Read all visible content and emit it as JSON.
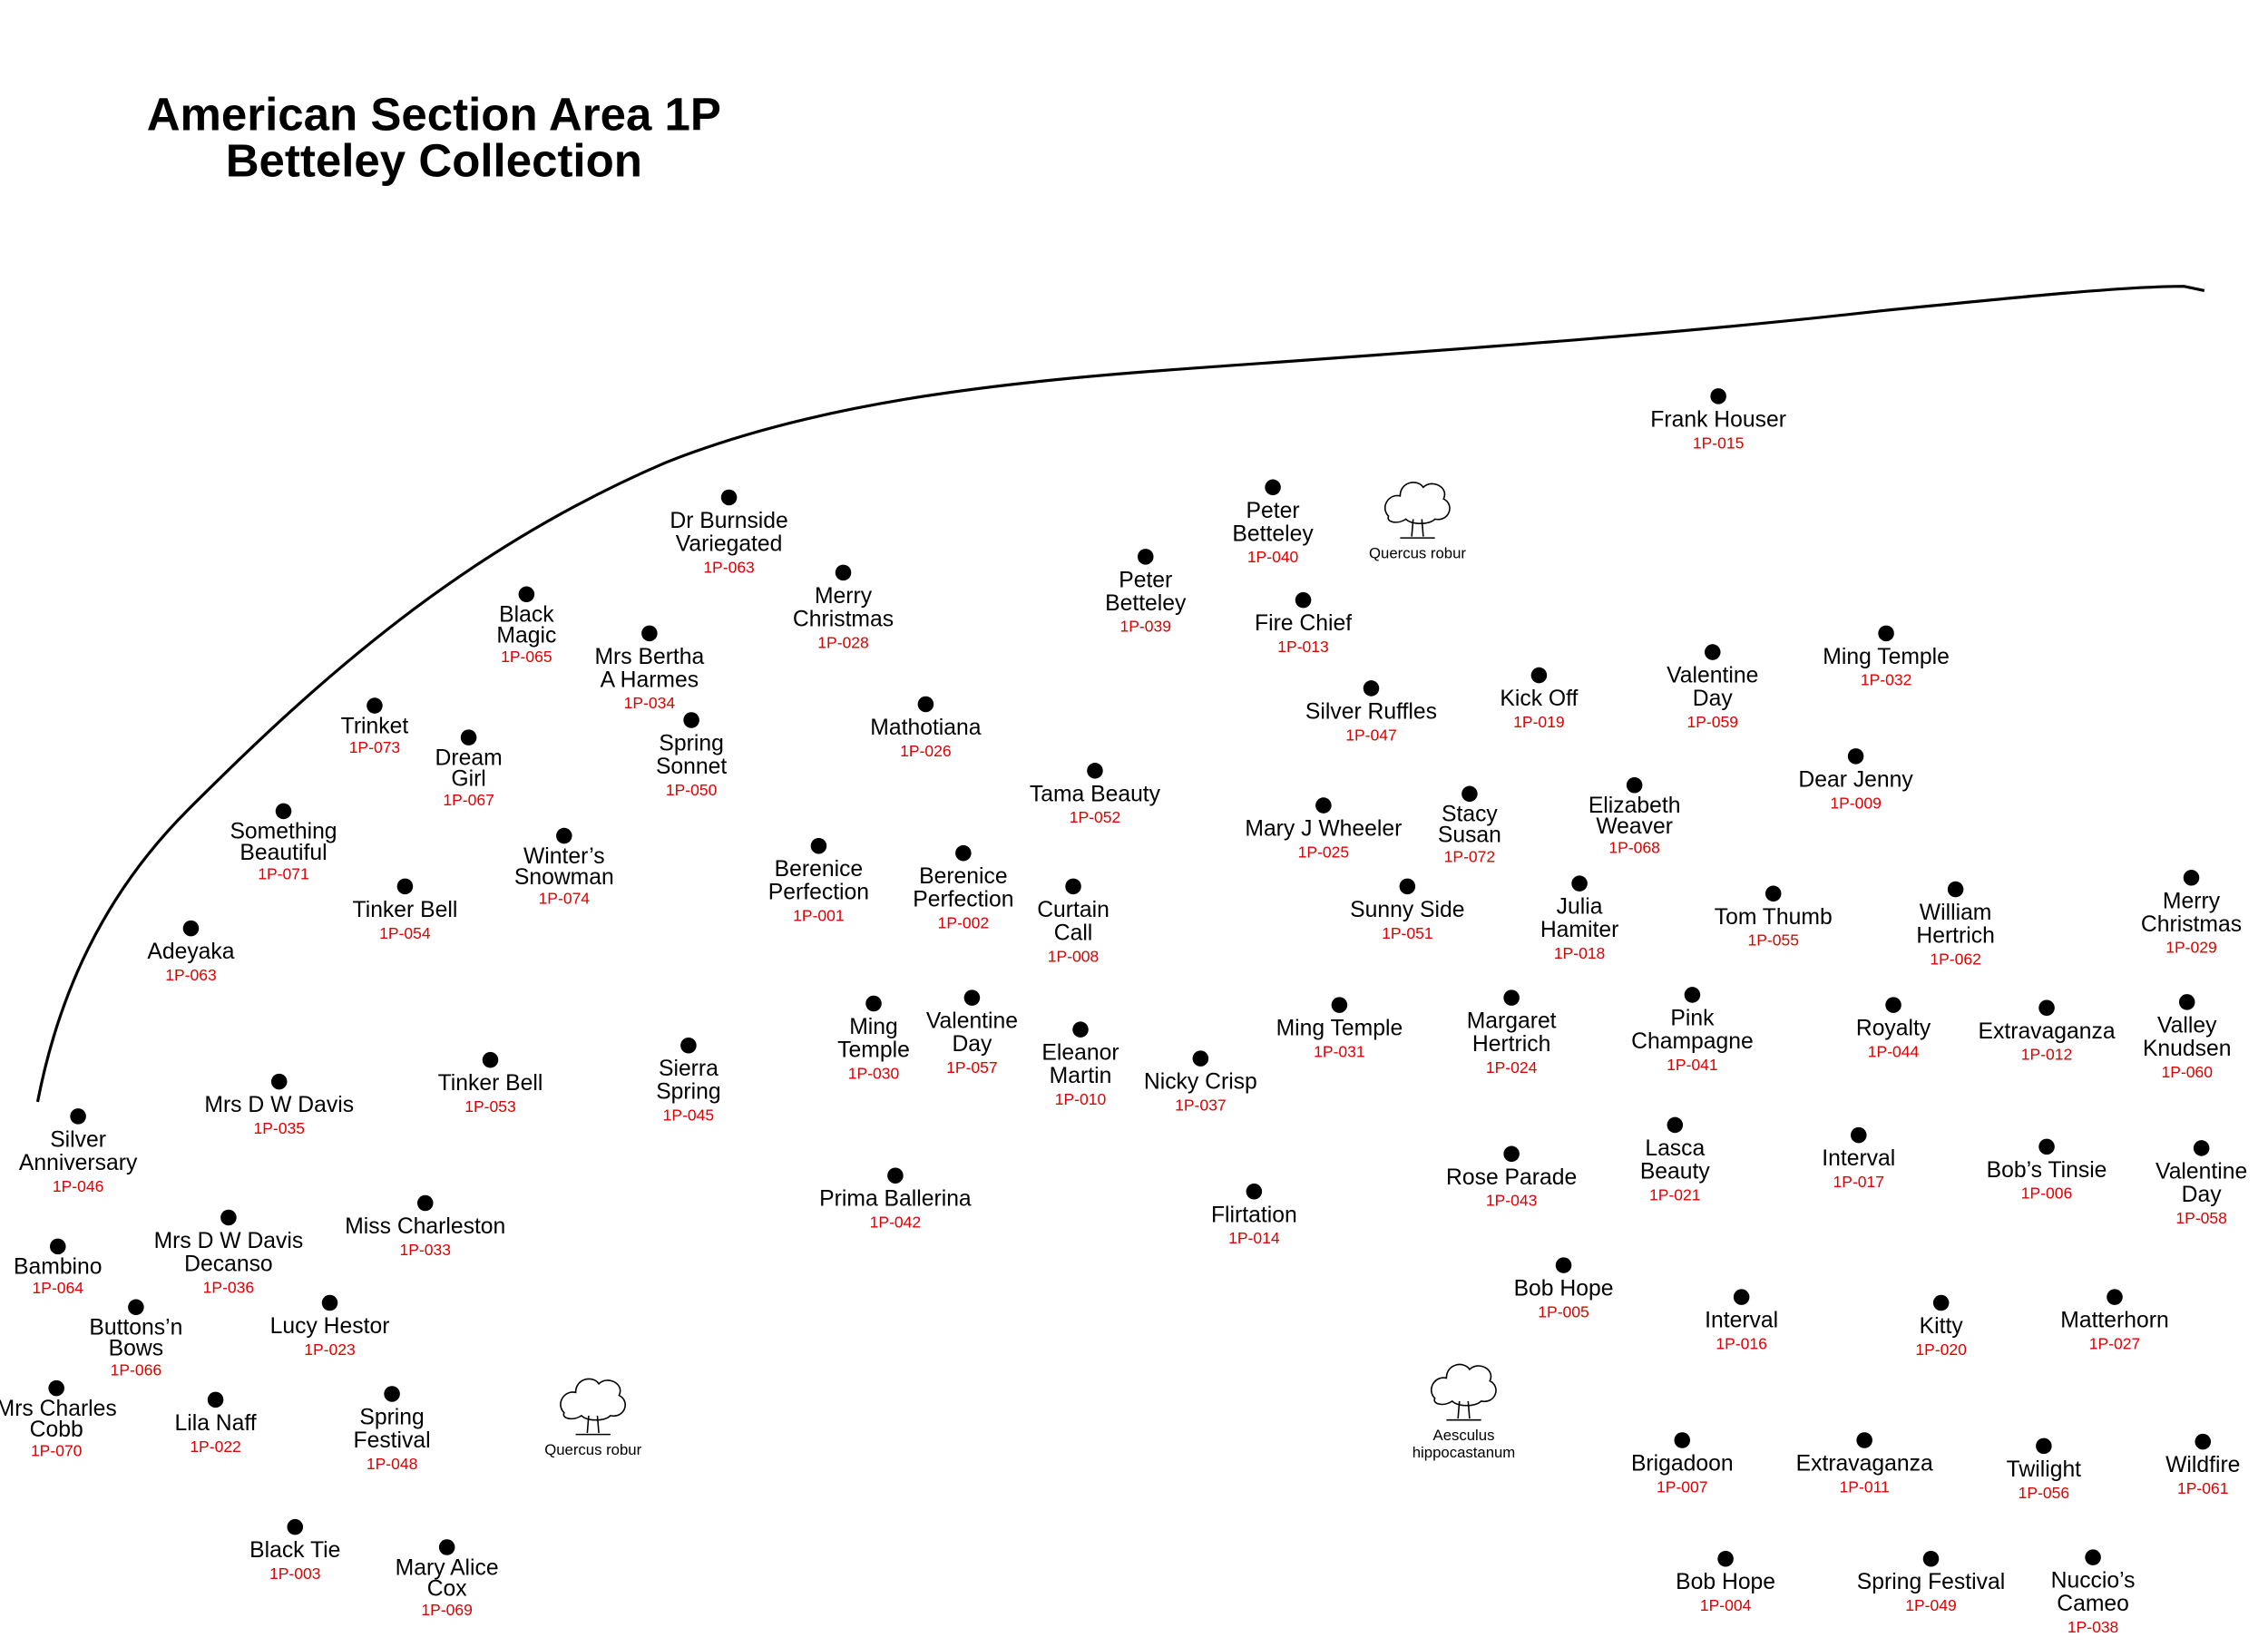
{
  "title": [
    "American Section  Area 1P",
    "Betteley Collection"
  ],
  "trees": [
    {
      "name": [
        "Quercus robur"
      ]
    },
    {
      "name": [
        "Quercus robur"
      ]
    },
    {
      "name": [
        "Aesculus",
        "hippocastanum"
      ]
    }
  ],
  "plants": [
    {
      "name": [
        "Frank Houser"
      ],
      "code": "1P-015"
    },
    {
      "name": [
        "Peter",
        "Betteley"
      ],
      "code": "1P-040"
    },
    {
      "name": [
        "Dr Burnside",
        "Variegated"
      ],
      "code": "1P-063"
    },
    {
      "name": [
        "Merry",
        "Christmas"
      ],
      "code": "1P-028"
    },
    {
      "name": [
        "Peter",
        "Betteley"
      ],
      "code": "1P-039"
    },
    {
      "name": [
        "Fire Chief"
      ],
      "code": "1P-013"
    },
    {
      "name": [
        "Black",
        "Magic"
      ],
      "code": "1P-065"
    },
    {
      "name": [
        "Mrs Bertha",
        "A Harmes"
      ],
      "code": "1P-034"
    },
    {
      "name": [
        "Spring",
        "Sonnet"
      ],
      "code": "1P-050"
    },
    {
      "name": [
        "Mathotiana"
      ],
      "code": "1P-026"
    },
    {
      "name": [
        "Silver Ruffles"
      ],
      "code": "1P-047"
    },
    {
      "name": [
        "Kick Off"
      ],
      "code": "1P-019"
    },
    {
      "name": [
        "Valentine",
        "Day"
      ],
      "code": "1P-059"
    },
    {
      "name": [
        "Ming Temple"
      ],
      "code": "1P-032"
    },
    {
      "name": [
        "Dear Jenny"
      ],
      "code": "1P-009"
    },
    {
      "name": [
        "Trinket"
      ],
      "code": "1P-073"
    },
    {
      "name": [
        "Dream",
        "Girl"
      ],
      "code": "1P-067"
    },
    {
      "name": [
        "Tama Beauty"
      ],
      "code": "1P-052"
    },
    {
      "name": [
        "Mary J Wheeler"
      ],
      "code": "1P-025"
    },
    {
      "name": [
        "Stacy",
        "Susan"
      ],
      "code": "1P-072"
    },
    {
      "name": [
        "Elizabeth",
        "Weaver"
      ],
      "code": "1P-068"
    },
    {
      "name": [
        "Something",
        "Beautiful"
      ],
      "code": "1P-071"
    },
    {
      "name": [
        "Winter’s",
        "Snowman"
      ],
      "code": "1P-074"
    },
    {
      "name": [
        "Berenice",
        "Perfection"
      ],
      "code": "1P-001"
    },
    {
      "name": [
        "Berenice",
        "Perfection"
      ],
      "code": "1P-002"
    },
    {
      "name": [
        "Curtain",
        "Call"
      ],
      "code": "1P-008"
    },
    {
      "name": [
        "Sunny Side"
      ],
      "code": "1P-051"
    },
    {
      "name": [
        "Julia",
        "Hamiter"
      ],
      "code": "1P-018"
    },
    {
      "name": [
        "Tom Thumb"
      ],
      "code": "1P-055"
    },
    {
      "name": [
        "William",
        "Hertrich"
      ],
      "code": "1P-062"
    },
    {
      "name": [
        "Merry",
        "Christmas"
      ],
      "code": "1P-029"
    },
    {
      "name": [
        "Tinker Bell"
      ],
      "code": "1P-054"
    },
    {
      "name": [
        "Adeyaka"
      ],
      "code": "1P-063"
    },
    {
      "name": [
        "Ming",
        "Temple"
      ],
      "code": "1P-030"
    },
    {
      "name": [
        "Valentine",
        "Day"
      ],
      "code": "1P-057"
    },
    {
      "name": [
        "Eleanor",
        "Martin"
      ],
      "code": "1P-010"
    },
    {
      "name": [
        "Nicky Crisp"
      ],
      "code": "1P-037"
    },
    {
      "name": [
        "Ming Temple"
      ],
      "code": "1P-031"
    },
    {
      "name": [
        "Margaret",
        "Hertrich"
      ],
      "code": "1P-024"
    },
    {
      "name": [
        "Pink",
        "Champagne"
      ],
      "code": "1P-041"
    },
    {
      "name": [
        "Royalty"
      ],
      "code": "1P-044"
    },
    {
      "name": [
        "Extravaganza"
      ],
      "code": "1P-012"
    },
    {
      "name": [
        "Valley",
        "Knudsen"
      ],
      "code": "1P-060"
    },
    {
      "name": [
        "Tinker Bell"
      ],
      "code": "1P-053"
    },
    {
      "name": [
        "Mrs D W Davis"
      ],
      "code": "1P-035"
    },
    {
      "name": [
        "Sierra",
        "Spring"
      ],
      "code": "1P-045"
    },
    {
      "name": [
        "Silver",
        "Anniversary"
      ],
      "code": "1P-046"
    },
    {
      "name": [
        "Prima Ballerina"
      ],
      "code": "1P-042"
    },
    {
      "name": [
        "Flirtation"
      ],
      "code": "1P-014"
    },
    {
      "name": [
        "Rose Parade"
      ],
      "code": "1P-043"
    },
    {
      "name": [
        "Lasca",
        "Beauty"
      ],
      "code": "1P-021"
    },
    {
      "name": [
        "Interval"
      ],
      "code": "1P-017"
    },
    {
      "name": [
        "Bob’s Tinsie"
      ],
      "code": "1P-006"
    },
    {
      "name": [
        "Valentine",
        "Day"
      ],
      "code": "1P-058"
    },
    {
      "name": [
        "Mrs D W Davis",
        "Decanso"
      ],
      "code": "1P-036"
    },
    {
      "name": [
        "Miss Charleston"
      ],
      "code": "1P-033"
    },
    {
      "name": [
        "Bambino"
      ],
      "code": "1P-064"
    },
    {
      "name": [
        "Buttons’n",
        "Bows"
      ],
      "code": "1P-066"
    },
    {
      "name": [
        "Lucy Hestor"
      ],
      "code": "1P-023"
    },
    {
      "name": [
        "Bob Hope"
      ],
      "code": "1P-005"
    },
    {
      "name": [
        "Interval"
      ],
      "code": "1P-016"
    },
    {
      "name": [
        "Kitty"
      ],
      "code": "1P-020"
    },
    {
      "name": [
        "Matterhorn"
      ],
      "code": "1P-027"
    },
    {
      "name": [
        "Mrs Charles",
        "Cobb"
      ],
      "code": "1P-070"
    },
    {
      "name": [
        "Lila Naff"
      ],
      "code": "1P-022"
    },
    {
      "name": [
        "Spring",
        "Festival"
      ],
      "code": "1P-048"
    },
    {
      "name": [
        "Brigadoon"
      ],
      "code": "1P-007"
    },
    {
      "name": [
        "Extravaganza"
      ],
      "code": "1P-011"
    },
    {
      "name": [
        "Twilight"
      ],
      "code": "1P-056"
    },
    {
      "name": [
        "Wildfire"
      ],
      "code": "1P-061"
    },
    {
      "name": [
        "Black Tie"
      ],
      "code": "1P-003"
    },
    {
      "name": [
        "Mary Alice",
        "Cox"
      ],
      "code": "1P-069"
    },
    {
      "name": [
        "Bob Hope"
      ],
      "code": "1P-004"
    },
    {
      "name": [
        "Spring Festival"
      ],
      "code": "1P-049"
    },
    {
      "name": [
        "Nuccio’s",
        "Cameo"
      ],
      "code": "1P-038"
    }
  ]
}
